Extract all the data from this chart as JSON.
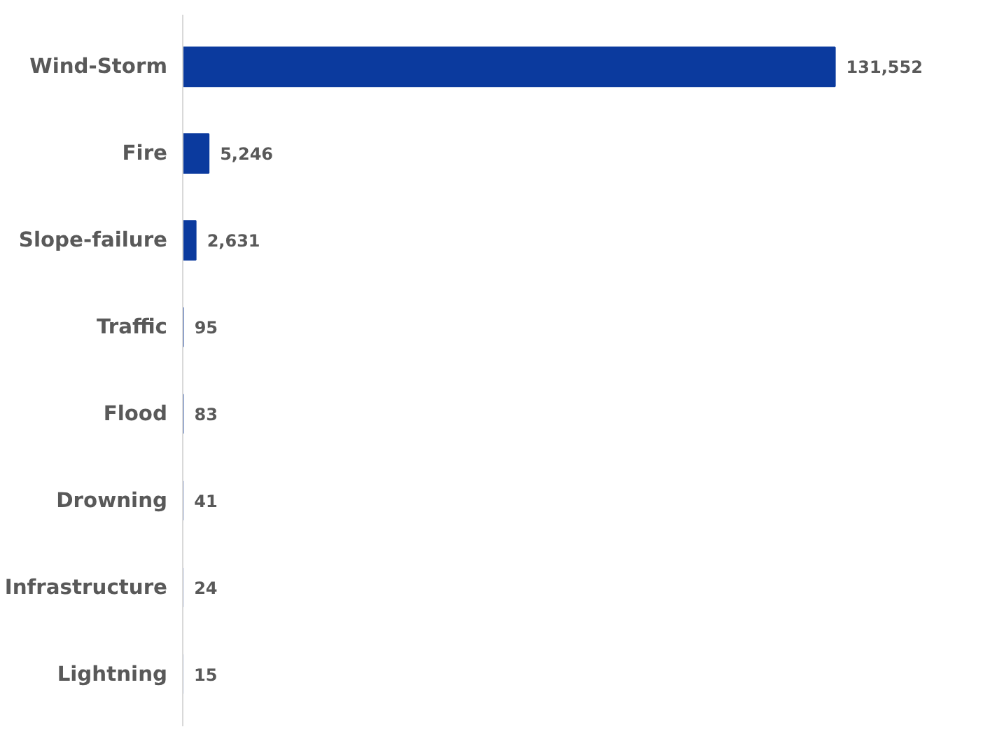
{
  "chart_data": {
    "type": "bar",
    "orientation": "horizontal",
    "categories": [
      "Wind-Storm",
      "Fire",
      "Slope-failure",
      "Traffic",
      "Flood",
      "Drowning",
      "Infrastructure",
      "Lightning"
    ],
    "values": [
      131552,
      5246,
      2631,
      95,
      83,
      41,
      24,
      15
    ],
    "value_labels": [
      "131,552",
      "5,246",
      "2,631",
      "95",
      "83",
      "41",
      "24",
      "15"
    ],
    "color": "#0b3a9e",
    "grid": false,
    "tick_labels": "y"
  }
}
